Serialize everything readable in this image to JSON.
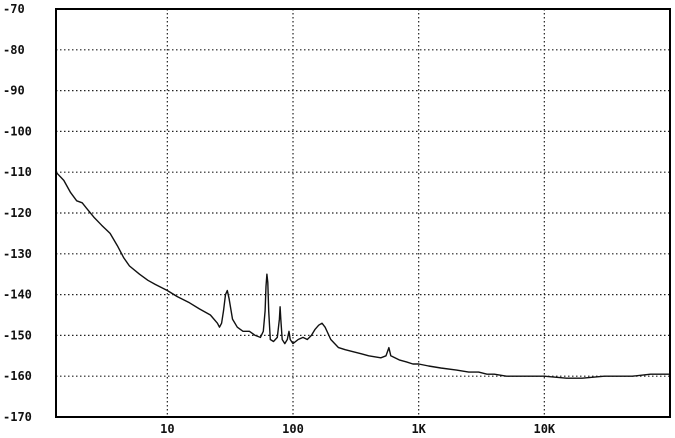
{
  "chart_data": {
    "type": "line",
    "xscale": "log",
    "xlim": [
      1.3,
      100000
    ],
    "ylim": [
      -170,
      -70
    ],
    "grid": true,
    "y_ticks": [
      {
        "value": -70,
        "label": "-70"
      },
      {
        "value": -80,
        "label": "-80"
      },
      {
        "value": -90,
        "label": "-90"
      },
      {
        "value": -100,
        "label": "-100"
      },
      {
        "value": -110,
        "label": "-110"
      },
      {
        "value": -120,
        "label": "-120"
      },
      {
        "value": -130,
        "label": "-130"
      },
      {
        "value": -140,
        "label": "-140"
      },
      {
        "value": -150,
        "label": "-150"
      },
      {
        "value": -160,
        "label": "-160"
      },
      {
        "value": -170,
        "label": "-170"
      }
    ],
    "x_ticks": [
      {
        "value": 10,
        "label": "10"
      },
      {
        "value": 100,
        "label": "100"
      },
      {
        "value": 1000,
        "label": "1K"
      },
      {
        "value": 10000,
        "label": "10K"
      }
    ],
    "colors": {
      "line": "#111111",
      "grid": "#222222",
      "frame": "#000000",
      "background": "#ffffff"
    },
    "series": [
      {
        "points": [
          [
            1.3,
            -110
          ],
          [
            1.5,
            -112
          ],
          [
            1.7,
            -115
          ],
          [
            1.9,
            -117
          ],
          [
            2.1,
            -117.5
          ],
          [
            2.3,
            -119
          ],
          [
            2.6,
            -121
          ],
          [
            3.0,
            -123
          ],
          [
            3.5,
            -125
          ],
          [
            4.0,
            -128
          ],
          [
            4.5,
            -131
          ],
          [
            5.0,
            -133
          ],
          [
            6.0,
            -135
          ],
          [
            7.0,
            -136.5
          ],
          [
            8.0,
            -137.5
          ],
          [
            10,
            -139
          ],
          [
            12,
            -140.5
          ],
          [
            15,
            -142
          ],
          [
            18,
            -143.5
          ],
          [
            22,
            -145
          ],
          [
            25,
            -147
          ],
          [
            26,
            -148
          ],
          [
            27,
            -147
          ],
          [
            28,
            -144
          ],
          [
            29,
            -140
          ],
          [
            30,
            -139
          ],
          [
            31,
            -141
          ],
          [
            33,
            -146
          ],
          [
            36,
            -148
          ],
          [
            40,
            -149
          ],
          [
            45,
            -149
          ],
          [
            50,
            -150
          ],
          [
            55,
            -150.5
          ],
          [
            58,
            -149
          ],
          [
            60,
            -144
          ],
          [
            61,
            -138
          ],
          [
            62,
            -135
          ],
          [
            63,
            -137
          ],
          [
            64,
            -144
          ],
          [
            66,
            -151
          ],
          [
            70,
            -151.5
          ],
          [
            75,
            -150.5
          ],
          [
            78,
            -146
          ],
          [
            79,
            -143
          ],
          [
            80,
            -146
          ],
          [
            82,
            -151
          ],
          [
            86,
            -152
          ],
          [
            90,
            -151
          ],
          [
            93,
            -149
          ],
          [
            95,
            -151
          ],
          [
            100,
            -152
          ],
          [
            110,
            -151
          ],
          [
            120,
            -150.5
          ],
          [
            130,
            -151
          ],
          [
            140,
            -150
          ],
          [
            150,
            -148.5
          ],
          [
            160,
            -147.5
          ],
          [
            170,
            -147
          ],
          [
            180,
            -148
          ],
          [
            200,
            -151
          ],
          [
            230,
            -153
          ],
          [
            260,
            -153.5
          ],
          [
            300,
            -154
          ],
          [
            350,
            -154.5
          ],
          [
            400,
            -155
          ],
          [
            500,
            -155.5
          ],
          [
            550,
            -155
          ],
          [
            580,
            -153
          ],
          [
            600,
            -155
          ],
          [
            700,
            -156
          ],
          [
            800,
            -156.5
          ],
          [
            900,
            -157
          ],
          [
            1000,
            -157
          ],
          [
            1200,
            -157.5
          ],
          [
            1500,
            -158
          ],
          [
            2000,
            -158.5
          ],
          [
            2500,
            -159
          ],
          [
            3000,
            -159
          ],
          [
            3500,
            -159.5
          ],
          [
            4000,
            -159.5
          ],
          [
            5000,
            -160
          ],
          [
            7000,
            -160
          ],
          [
            10000,
            -160
          ],
          [
            15000,
            -160.5
          ],
          [
            20000,
            -160.5
          ],
          [
            30000,
            -160
          ],
          [
            50000,
            -160
          ],
          [
            70000,
            -159.5
          ],
          [
            100000,
            -159.5
          ]
        ]
      }
    ]
  }
}
